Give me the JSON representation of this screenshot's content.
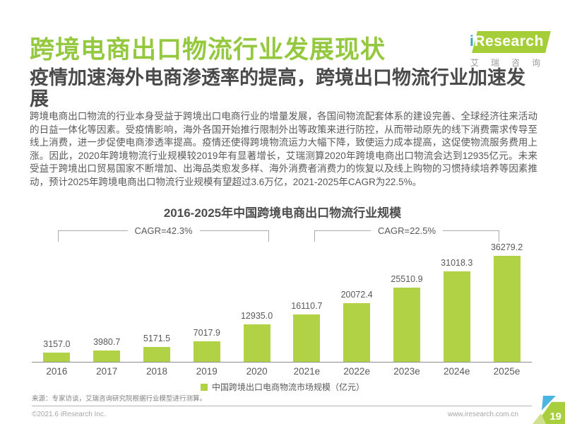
{
  "page": {
    "title": "跨境电商出口物流行业发展现状",
    "subtitle": "疫情加速海外电商渗透率的提高，跨境出口物流行业加速发展",
    "body": "跨境电商出口物流的行业本身受益于跨境出口电商行业的增量发展，各国间物流配套体系的建设完善、全球经济往来活动的日益一体化等因素。受疫情影响，海外各国开始推行限制外出等政策来进行防控，从而带动原先的线下消费需求传导至线上消费，进一步促使电商渗透率提高。疫情还使得跨境物流运力大幅下降，致使运力成本提高，这促使物流服务费用上涨。因此，2020年跨境物流行业规模较2019年有显著增长，艾瑞测算2020年跨境电商出口物流会达到12935亿元。未来受益于跨境出口贸易国家不断增加、出海品类愈发多样、海外消费者消费力的恢复以及线上购物的习惯持续培养等因素推动，预计2025年跨境电商出口物流行业规模有望超过3.6万亿，2021-2025年CAGR为22.5%。"
  },
  "logo": {
    "i": "i",
    "name": "Research",
    "cn": "艾瑞咨询"
  },
  "chart_data": {
    "type": "bar",
    "title": "2016-2025年中国跨境电商出口物流行业规模",
    "categories": [
      "2016",
      "2017",
      "2018",
      "2019",
      "2020",
      "2021e",
      "2022e",
      "2023e",
      "2024e",
      "2025e"
    ],
    "values": [
      3157.0,
      3980.7,
      5171.5,
      7017.9,
      12935.0,
      16110.7,
      20072.4,
      25510.9,
      31018.3,
      36279.2
    ],
    "value_labels": [
      "3157.0",
      "3980.7",
      "5171.5",
      "7017.9",
      "12935.0",
      "16110.7",
      "20072.4",
      "25510.9",
      "31018.3",
      "36279.2"
    ],
    "ylim": [
      0,
      36279.2
    ],
    "xlabel": "",
    "ylabel": "",
    "grid": false,
    "bar_color": "#b2d245",
    "legend": "中国跨境出口电商物流市场规模（亿元）",
    "legend_position": "bottom",
    "annotations": [
      {
        "label": "CAGR=42.3%",
        "from": "2016",
        "to": "2020"
      },
      {
        "label": "CAGR=22.5%",
        "from": "2021e",
        "to": "2025e"
      }
    ]
  },
  "footer": {
    "source": "来源：专家访谈，艾瑞咨询研究院根据行业模型进行测算。",
    "copyright": "©2021.6 iResearch Inc.",
    "website": "www.iresearch.com.cn",
    "page_number": "19"
  },
  "colors": {
    "title_green": "#94c83f",
    "bar_green": "#b2d245",
    "logo_teal": "#2fa8b8",
    "badge_blue": "#4ab5de"
  }
}
